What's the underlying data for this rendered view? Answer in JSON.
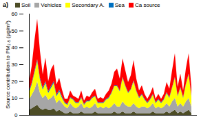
{
  "chart_data": {
    "type": "area",
    "title": "a)",
    "y_label": "Source contribution to PM₂.₅ (µg/m³)",
    "stacked": true,
    "grid": false,
    "legend": "top",
    "tick_labels": "y",
    "ylim": [
      0,
      60
    ],
    "yticks": [
      0,
      10,
      20,
      30,
      40,
      50,
      60
    ],
    "categories": [
      null,
      null,
      null,
      null,
      null,
      null,
      null,
      null,
      null,
      null,
      null,
      null,
      null,
      null,
      null,
      null,
      null,
      null,
      null,
      null,
      null,
      null,
      null,
      null,
      null,
      null,
      null,
      null,
      null,
      null,
      null,
      null,
      null,
      null,
      null,
      null,
      null,
      null,
      null,
      null,
      null,
      null,
      null,
      null,
      null,
      null,
      null,
      null,
      null,
      null,
      null,
      null,
      null,
      null,
      null,
      null,
      null,
      null,
      null,
      null
    ],
    "series": [
      {
        "name": "Soil",
        "color": "#4d4d26",
        "values": [
          3,
          4,
          5,
          6,
          4,
          3,
          4,
          3,
          3,
          4,
          2,
          3,
          2,
          1,
          1,
          2,
          1,
          1,
          1,
          2,
          1,
          1,
          1,
          1,
          2,
          1,
          1,
          1,
          1,
          1,
          1,
          2,
          1,
          1,
          2,
          1,
          1,
          1,
          2,
          1,
          1,
          1,
          1,
          1,
          1,
          2,
          1,
          1,
          1,
          1,
          2,
          1,
          2,
          3,
          1,
          2,
          1,
          2,
          3,
          1
        ]
      },
      {
        "name": "Vehicles",
        "color": "#a6a6a6",
        "values": [
          6,
          8,
          10,
          14,
          9,
          7,
          8,
          6,
          7,
          8,
          5,
          6,
          5,
          4,
          3,
          5,
          4,
          3,
          4,
          5,
          3,
          4,
          3,
          4,
          5,
          3,
          4,
          3,
          4,
          3,
          4,
          5,
          4,
          4,
          6,
          5,
          4,
          4,
          5,
          4,
          3,
          4,
          4,
          3,
          4,
          5,
          3,
          4,
          3,
          4,
          5,
          4,
          6,
          7,
          4,
          5,
          4,
          6,
          7,
          4
        ]
      },
      {
        "name": "Secondary A.",
        "color": "#ffff00",
        "values": [
          4,
          6,
          10,
          12,
          8,
          5,
          7,
          4,
          6,
          7,
          4,
          5,
          3,
          2,
          2,
          3,
          4,
          3,
          2,
          3,
          2,
          3,
          4,
          5,
          4,
          3,
          2,
          3,
          4,
          6,
          8,
          10,
          12,
          9,
          14,
          11,
          8,
          10,
          13,
          9,
          6,
          7,
          4,
          3,
          4,
          5,
          3,
          4,
          3,
          4,
          6,
          5,
          8,
          12,
          6,
          9,
          5,
          10,
          14,
          6
        ]
      },
      {
        "name": "Sea",
        "color": "#0070c0",
        "values": [
          1,
          1,
          1,
          1,
          1,
          1,
          1,
          1,
          1,
          1,
          1,
          1,
          1,
          0.5,
          0.5,
          0.5,
          0.5,
          0.5,
          0.5,
          0.5,
          0.5,
          0.5,
          0.5,
          0.5,
          0.5,
          0.5,
          0.5,
          0.5,
          0.5,
          0.5,
          0.5,
          0.5,
          0.5,
          0.5,
          0.5,
          0.5,
          0.5,
          0.5,
          0.5,
          0.5,
          0.5,
          0.5,
          0.5,
          0.5,
          0.5,
          0.5,
          0.5,
          0.5,
          0.5,
          0.5,
          0.5,
          0.5,
          0.5,
          0.5,
          0.5,
          0.5,
          0.5,
          0.5,
          0.5,
          0.5
        ]
      },
      {
        "name": "Ca source",
        "color": "#ff0000",
        "values": [
          5,
          10,
          18,
          24,
          16,
          8,
          14,
          6,
          10,
          10,
          6,
          7,
          4,
          2,
          3,
          4,
          2,
          3,
          2,
          4,
          2,
          3,
          2,
          3,
          4,
          2,
          3,
          2,
          3,
          4,
          5,
          8,
          10,
          7,
          11,
          9,
          6,
          8,
          12,
          7,
          4,
          5,
          3,
          2,
          3,
          4,
          2,
          3,
          2,
          3,
          6,
          5,
          10,
          14,
          5,
          8,
          4,
          9,
          12,
          5
        ]
      }
    ]
  }
}
